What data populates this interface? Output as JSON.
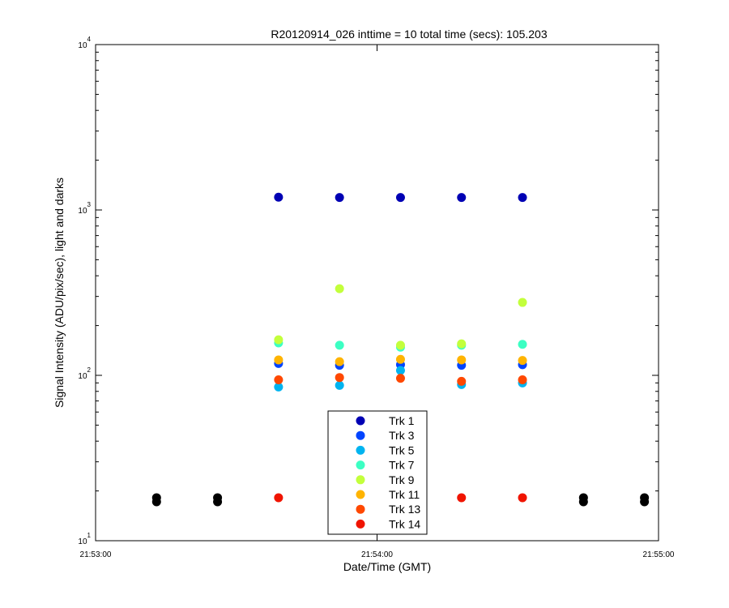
{
  "chart_data": {
    "type": "scatter",
    "title": "R20120914_026 inttime = 10 total time (secs): 105.203",
    "x_label": "Date/Time (GMT)",
    "y_label": "Signal Intensity (ADU/pix/sec), light and darks",
    "x": [
      "21:53:13",
      "21:53:26",
      "21:53:39",
      "21:53:52",
      "21:54:05",
      "21:54:18",
      "21:54:31",
      "21:54:44",
      "21:54:57"
    ],
    "xlim": [
      "21:53:00",
      "21:55:00"
    ],
    "xticks": [
      "21:53:00",
      "21:54:00",
      "21:55:00"
    ],
    "ylim": [
      10,
      10000
    ],
    "log_y": true,
    "yticks": [
      {
        "value": 10,
        "label": "10",
        "exponent": "1"
      },
      {
        "value": 100,
        "label": "10",
        "exponent": "2"
      },
      {
        "value": 1000,
        "label": "10",
        "exponent": "3"
      },
      {
        "value": 10000,
        "label": "10",
        "exponent": "4"
      }
    ],
    "grid": false,
    "legend": "bottom-center",
    "series": [
      {
        "name": "Trk 1",
        "color": "#0000b4",
        "values": [
          null,
          null,
          1195,
          1190,
          1190,
          1190,
          1190,
          null,
          null
        ]
      },
      {
        "name": "Trk 3",
        "color": "#0044ff",
        "values": [
          null,
          null,
          118,
          115,
          116,
          115,
          116,
          null,
          null
        ]
      },
      {
        "name": "Trk 5",
        "color": "#00b4f0",
        "values": [
          null,
          null,
          85,
          87,
          107,
          88,
          90,
          null,
          null
        ]
      },
      {
        "name": "Trk 7",
        "color": "#3cffc3",
        "values": [
          null,
          null,
          157,
          152,
          148,
          152,
          154,
          null,
          null
        ]
      },
      {
        "name": "Trk 9",
        "color": "#c3ff3c",
        "values": [
          null,
          null,
          164,
          334,
          152,
          155,
          276,
          null,
          null
        ]
      },
      {
        "name": "Trk 11",
        "color": "#ffb400",
        "values": [
          null,
          null,
          124,
          121,
          125,
          124,
          123,
          null,
          null
        ]
      },
      {
        "name": "Trk 13",
        "color": "#ff4800",
        "values": [
          null,
          null,
          94,
          97,
          96,
          92,
          94,
          null,
          null
        ]
      },
      {
        "name": "Trk 14",
        "color": "#f01400",
        "values": [
          null,
          null,
          18.2,
          null,
          null,
          18.2,
          18.2,
          null,
          null
        ]
      },
      {
        "color": "#000000",
        "values": [
          18.2,
          18.2,
          null,
          null,
          null,
          null,
          null,
          18.2,
          18.2
        ]
      },
      {
        "color": "#000000",
        "values": [
          17.2,
          17.2,
          null,
          null,
          null,
          null,
          null,
          17.2,
          17.2
        ]
      }
    ]
  }
}
